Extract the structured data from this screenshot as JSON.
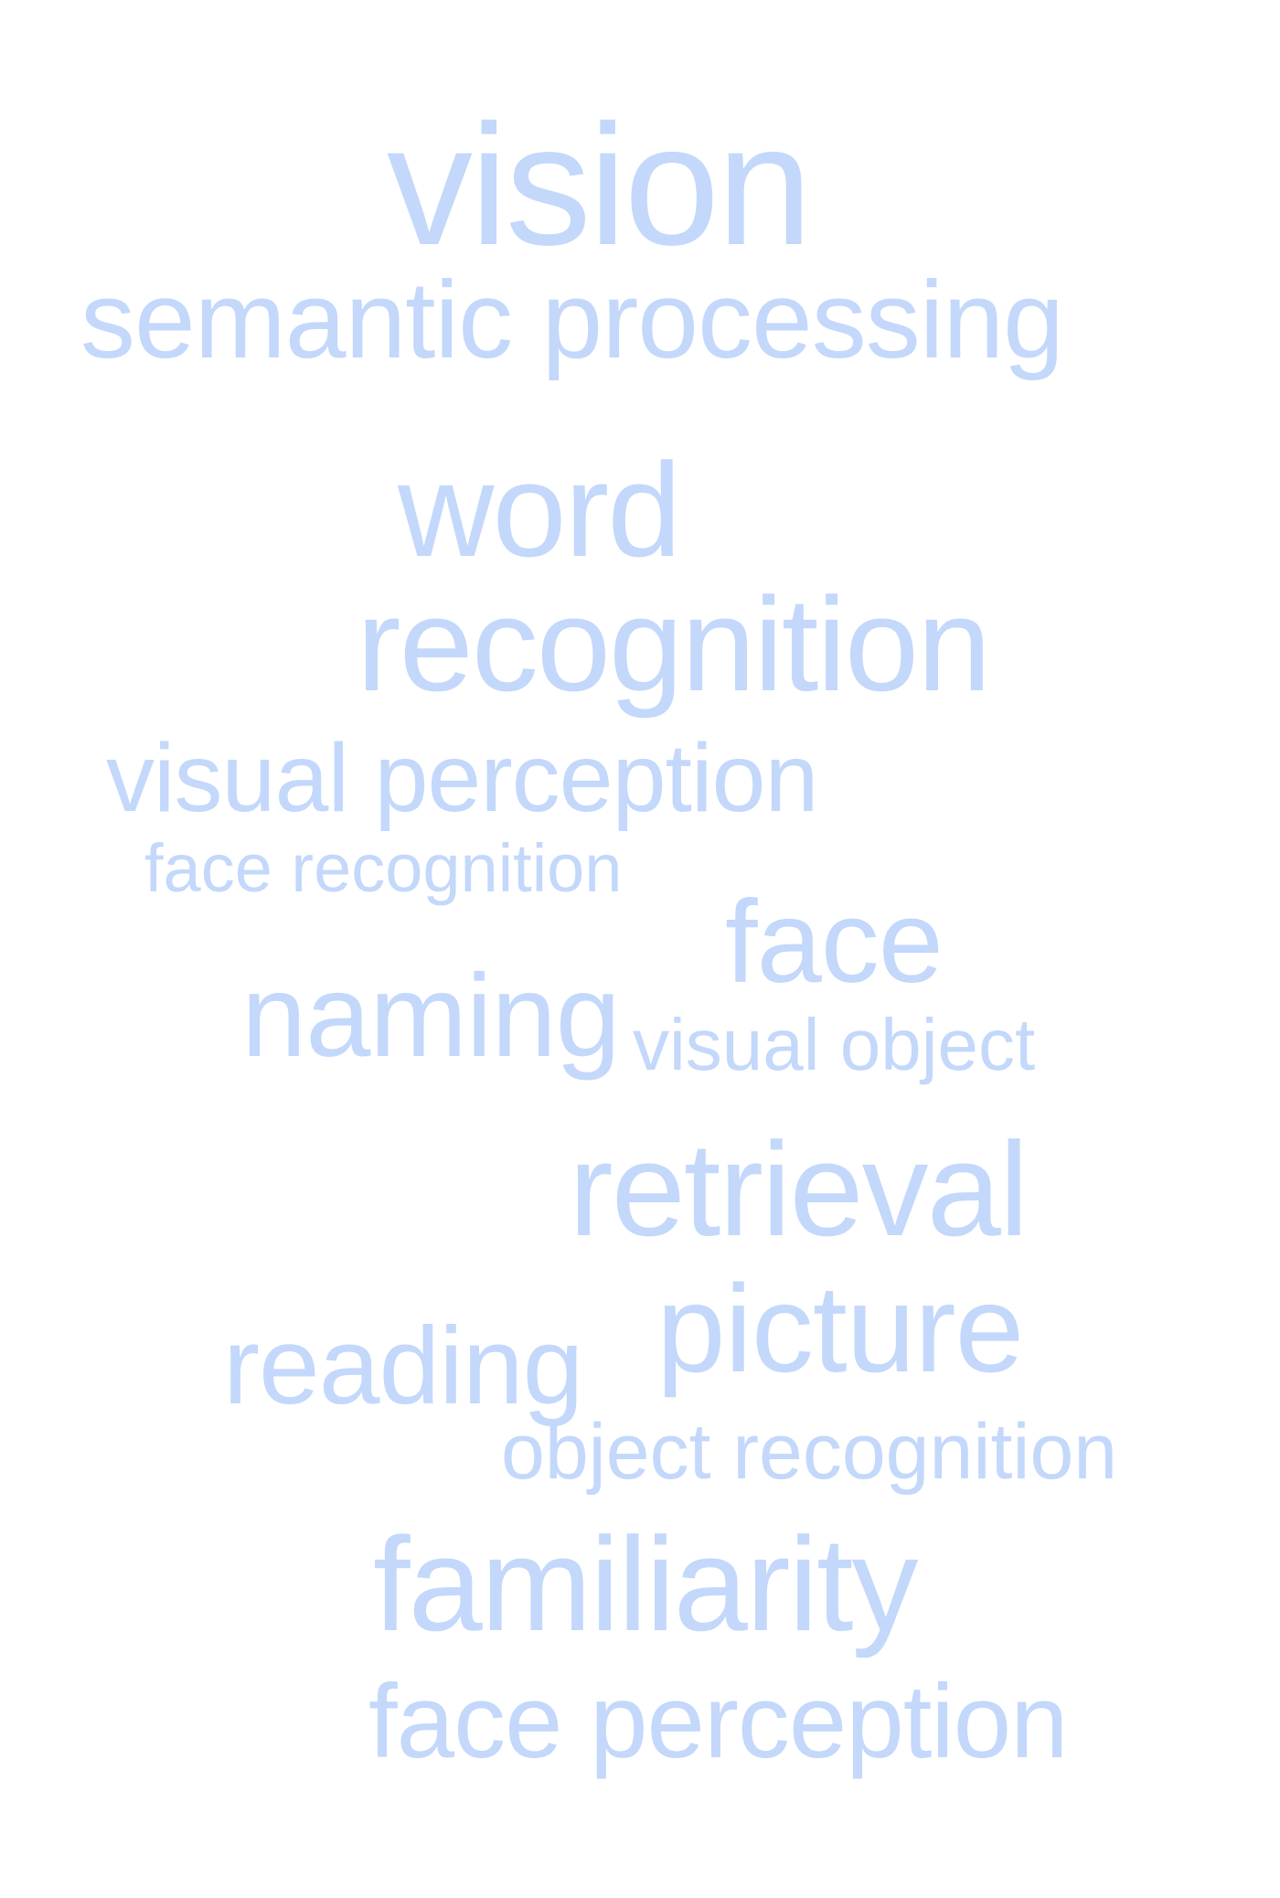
{
  "word_cloud": {
    "color": "#c3d8fa",
    "words": [
      {
        "text": "vision",
        "weight": 1.0
      },
      {
        "text": "semantic processing",
        "weight": 0.64
      },
      {
        "text": "word",
        "weight": 0.77
      },
      {
        "text": "recognition",
        "weight": 0.78
      },
      {
        "text": "visual perception",
        "weight": 0.57
      },
      {
        "text": "face recognition",
        "weight": 0.4
      },
      {
        "text": "face",
        "weight": 0.68
      },
      {
        "text": "naming",
        "weight": 0.68
      },
      {
        "text": "visual object",
        "weight": 0.43
      },
      {
        "text": "retrieval",
        "weight": 0.78
      },
      {
        "text": "picture",
        "weight": 0.72
      },
      {
        "text": "reading",
        "weight": 0.64
      },
      {
        "text": "object recognition",
        "weight": 0.46
      },
      {
        "text": "familiarity",
        "weight": 0.78
      },
      {
        "text": "face perception",
        "weight": 0.61
      }
    ]
  }
}
